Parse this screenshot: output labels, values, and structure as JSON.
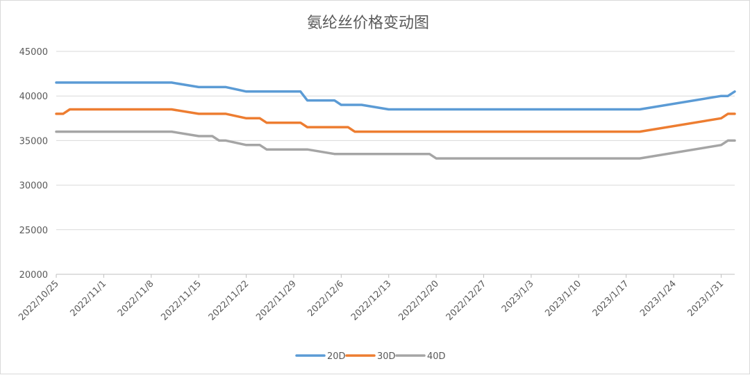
{
  "chart_data": {
    "type": "line",
    "title": "氨纶丝价格变动图",
    "xlabel": "",
    "ylabel": "",
    "ylim": [
      20000,
      45000
    ],
    "yticks": [
      20000,
      25000,
      30000,
      35000,
      40000,
      45000
    ],
    "xlim": [
      "2022/10/25",
      "2023/2/2"
    ],
    "xticks": [
      "2022/10/25",
      "2022/11/1",
      "2022/11/8",
      "2022/11/15",
      "2022/11/22",
      "2022/11/29",
      "2022/12/6",
      "2022/12/13",
      "2022/12/20",
      "2022/12/27",
      "2023/1/3",
      "2023/1/10",
      "2023/1/17",
      "2023/1/24",
      "2023/1/31"
    ],
    "grid": true,
    "legend": "bottom",
    "series": [
      {
        "name": "20D",
        "color": "#5B9BD5",
        "points": [
          [
            "2022/10/25",
            41500
          ],
          [
            "2022/11/11",
            41500
          ],
          [
            "2022/11/15",
            41000
          ],
          [
            "2022/11/19",
            41000
          ],
          [
            "2022/11/22",
            40500
          ],
          [
            "2022/11/30",
            40500
          ],
          [
            "2022/12/1",
            39500
          ],
          [
            "2022/12/5",
            39500
          ],
          [
            "2022/12/6",
            39000
          ],
          [
            "2022/12/9",
            39000
          ],
          [
            "2022/12/13",
            38500
          ],
          [
            "2023/1/19",
            38500
          ],
          [
            "2023/1/31",
            40000
          ],
          [
            "2023/2/1",
            40000
          ],
          [
            "2023/2/2",
            40500
          ]
        ]
      },
      {
        "name": "30D",
        "color": "#ED7D31",
        "points": [
          [
            "2022/10/25",
            38000
          ],
          [
            "2022/10/26",
            38000
          ],
          [
            "2022/10/27",
            38500
          ],
          [
            "2022/11/11",
            38500
          ],
          [
            "2022/11/15",
            38000
          ],
          [
            "2022/11/19",
            38000
          ],
          [
            "2022/11/22",
            37500
          ],
          [
            "2022/11/24",
            37500
          ],
          [
            "2022/11/25",
            37000
          ],
          [
            "2022/11/30",
            37000
          ],
          [
            "2022/12/1",
            36500
          ],
          [
            "2022/12/7",
            36500
          ],
          [
            "2022/12/8",
            36000
          ],
          [
            "2023/1/19",
            36000
          ],
          [
            "2023/1/31",
            37500
          ],
          [
            "2023/2/1",
            38000
          ],
          [
            "2023/2/2",
            38000
          ]
        ]
      },
      {
        "name": "40D",
        "color": "#A5A5A5",
        "points": [
          [
            "2022/10/25",
            36000
          ],
          [
            "2022/11/11",
            36000
          ],
          [
            "2022/11/15",
            35500
          ],
          [
            "2022/11/17",
            35500
          ],
          [
            "2022/11/18",
            35000
          ],
          [
            "2022/11/19",
            35000
          ],
          [
            "2022/11/22",
            34500
          ],
          [
            "2022/11/24",
            34500
          ],
          [
            "2022/11/25",
            34000
          ],
          [
            "2022/12/1",
            34000
          ],
          [
            "2022/12/5",
            33500
          ],
          [
            "2022/12/19",
            33500
          ],
          [
            "2022/12/20",
            33000
          ],
          [
            "2023/1/19",
            33000
          ],
          [
            "2023/1/31",
            34500
          ],
          [
            "2023/2/1",
            35000
          ],
          [
            "2023/2/2",
            35000
          ]
        ]
      }
    ]
  }
}
